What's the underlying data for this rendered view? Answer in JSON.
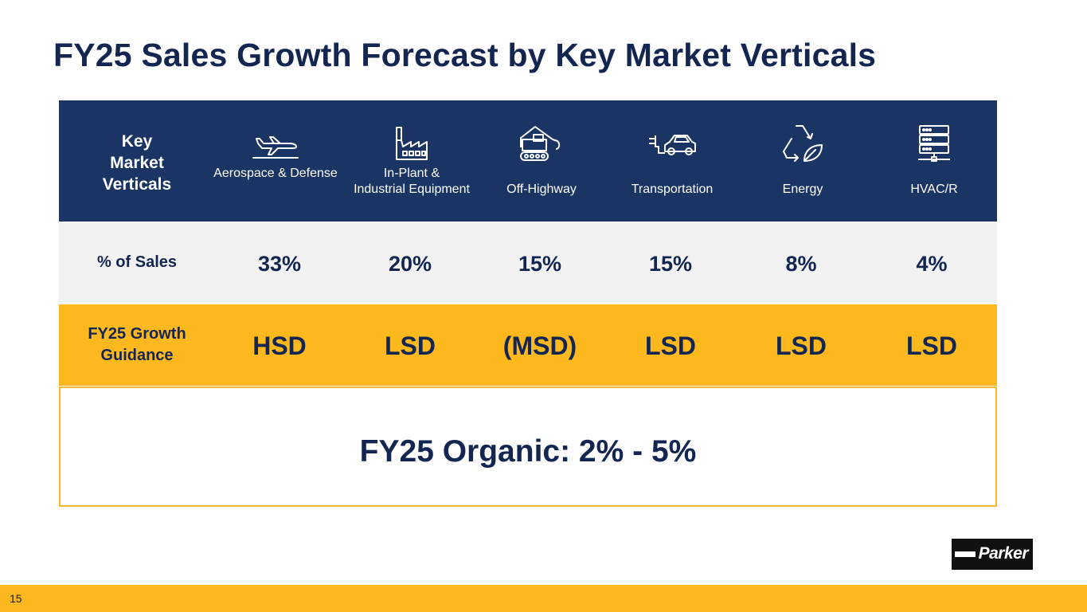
{
  "title": "FY25 Sales Growth Forecast by Key Market Verticals",
  "table": {
    "header_label": "Key Market Verticals",
    "sales_label": "% of Sales",
    "growth_label": "FY25 Growth Guidance",
    "verticals": [
      {
        "name": "Aerospace & Defense",
        "icon": "airplane-icon",
        "sales": "33%",
        "guidance": "HSD"
      },
      {
        "name": "In-Plant & Industrial Equipment",
        "icon": "factory-icon",
        "sales": "20%",
        "guidance": "LSD"
      },
      {
        "name": "Off-Highway",
        "icon": "excavator-icon",
        "sales": "15%",
        "guidance": "(MSD)"
      },
      {
        "name": "Transportation",
        "icon": "electric-car-icon",
        "sales": "15%",
        "guidance": "LSD"
      },
      {
        "name": "Energy",
        "icon": "recycle-leaf-icon",
        "sales": "8%",
        "guidance": "LSD"
      },
      {
        "name": "HVAC/R",
        "icon": "server-rack-icon",
        "sales": "4%",
        "guidance": "LSD"
      }
    ],
    "organic": "FY25 Organic: 2% - 5%"
  },
  "logo": {
    "text": "Parker"
  },
  "footer": {
    "page_number": "15"
  },
  "colors": {
    "navy": "#1a3563",
    "gold": "#fdb81e",
    "light_gray": "#f2f2f2",
    "title": "#132651"
  }
}
